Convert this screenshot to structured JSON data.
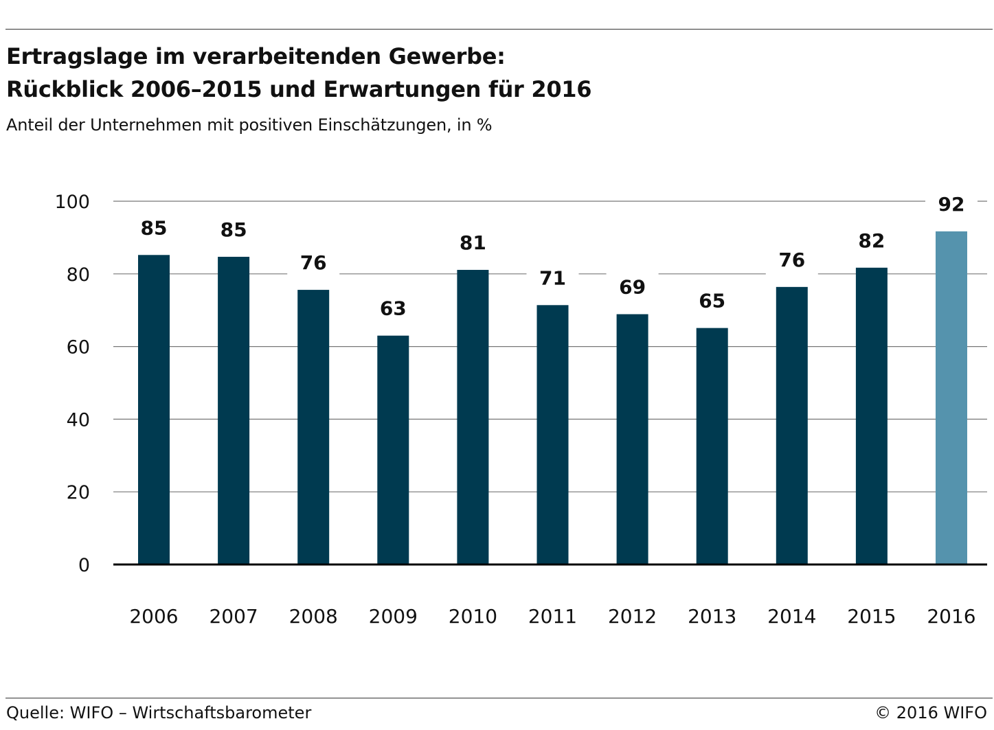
{
  "header": {
    "title_line1": "Ertragslage im verarbeitenden Gewerbe:",
    "title_line2": "Rückblick 2006–2015 und Erwartungen für 2016",
    "subtitle": "Anteil der Unternehmen mit positiven Einschätzungen, in %"
  },
  "footer": {
    "source": "Quelle: WIFO – Wirtschaftsbarometer",
    "copyright": "© 2016 WIFO"
  },
  "chart_data": {
    "type": "bar",
    "title": "Ertragslage im verarbeitenden Gewerbe: Rückblick 2006–2015 und Erwartungen für 2016",
    "subtitle": "Anteil der Unternehmen mit positiven Einschätzungen, in %",
    "xlabel": "",
    "ylabel": "",
    "categories": [
      "2006",
      "2007",
      "2008",
      "2009",
      "2010",
      "2011",
      "2012",
      "2013",
      "2014",
      "2015",
      "2016"
    ],
    "values": [
      85,
      85,
      76,
      63,
      81,
      71,
      69,
      65,
      76,
      82,
      92
    ],
    "plot_values": [
      85.2,
      84.7,
      75.6,
      63.0,
      81.1,
      71.4,
      68.9,
      65.1,
      76.4,
      81.7,
      91.7
    ],
    "ylim": [
      0,
      100
    ],
    "yticks": [
      0,
      20,
      40,
      60,
      80,
      100
    ],
    "grid": true,
    "colors": {
      "bar": "#003a50",
      "highlight": "#5593ad",
      "grid": "#777777",
      "axis": "#000000"
    },
    "highlight_index": 10
  }
}
